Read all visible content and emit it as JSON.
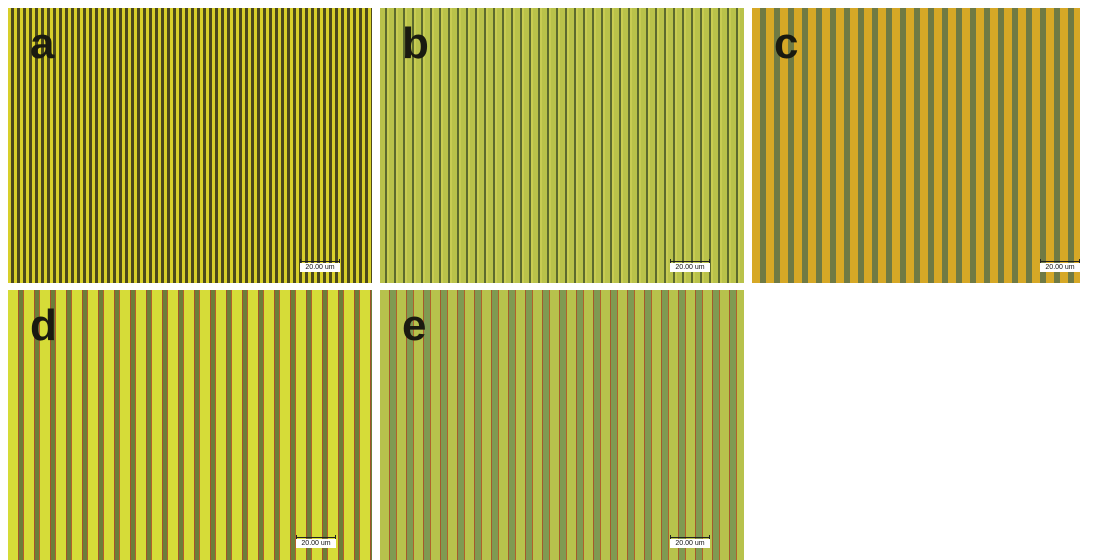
{
  "panels": [
    {
      "label": "a",
      "scale_bar": "20.00 um"
    },
    {
      "label": "b",
      "scale_bar": "20.00 um"
    },
    {
      "label": "c",
      "scale_bar": "20.00 um"
    },
    {
      "label": "d",
      "scale_bar": "20.00 um"
    },
    {
      "label": "e",
      "scale_bar": "20.00 um"
    }
  ]
}
